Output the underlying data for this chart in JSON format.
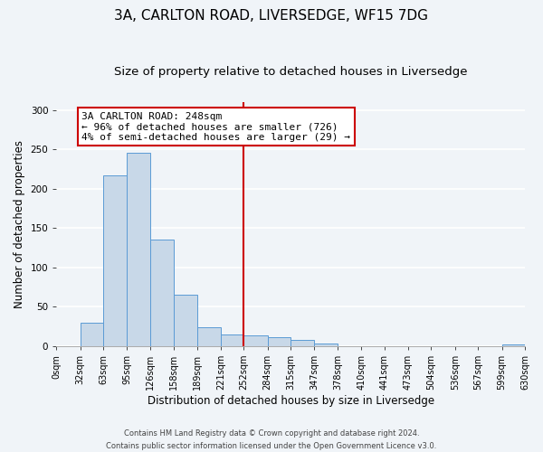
{
  "title": "3A, CARLTON ROAD, LIVERSEDGE, WF15 7DG",
  "subtitle": "Size of property relative to detached houses in Liversedge",
  "xlabel": "Distribution of detached houses by size in Liversedge",
  "ylabel": "Number of detached properties",
  "footer_line1": "Contains HM Land Registry data © Crown copyright and database right 2024.",
  "footer_line2": "Contains public sector information licensed under the Open Government Licence v3.0.",
  "bin_edges": [
    0,
    32,
    63,
    95,
    126,
    158,
    189,
    221,
    252,
    284,
    315,
    347,
    378,
    410,
    441,
    473,
    504,
    536,
    567,
    599,
    630
  ],
  "bin_labels": [
    "0sqm",
    "32sqm",
    "63sqm",
    "95sqm",
    "126sqm",
    "158sqm",
    "189sqm",
    "221sqm",
    "252sqm",
    "284sqm",
    "315sqm",
    "347sqm",
    "378sqm",
    "410sqm",
    "441sqm",
    "473sqm",
    "504sqm",
    "536sqm",
    "567sqm",
    "599sqm",
    "630sqm"
  ],
  "counts": [
    0,
    30,
    217,
    246,
    136,
    65,
    24,
    15,
    14,
    11,
    8,
    3,
    0,
    0,
    0,
    0,
    0,
    0,
    0,
    2
  ],
  "bar_color": "#c8d8e8",
  "bar_edge_color": "#5b9bd5",
  "vline_x": 252,
  "vline_color": "#cc0000",
  "annotation_title": "3A CARLTON ROAD: 248sqm",
  "annotation_line1": "← 96% of detached houses are smaller (726)",
  "annotation_line2": "4% of semi-detached houses are larger (29) →",
  "annotation_box_color": "#ffffff",
  "annotation_box_edge": "#cc0000",
  "ylim": [
    0,
    310
  ],
  "background_color": "#f0f4f8",
  "plot_background": "#f0f4f8",
  "grid_color": "#ffffff",
  "title_fontsize": 11,
  "subtitle_fontsize": 9.5,
  "axis_label_fontsize": 8.5,
  "tick_fontsize": 7,
  "annotation_fontsize": 8,
  "footer_fontsize": 6
}
